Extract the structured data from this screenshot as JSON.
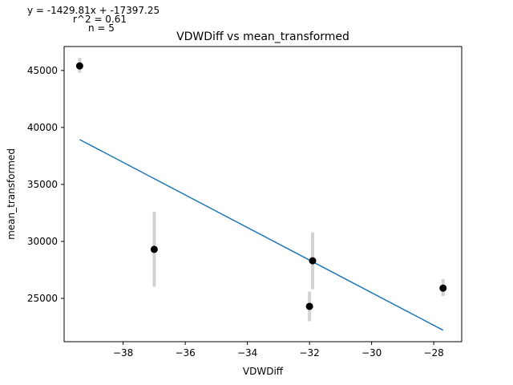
{
  "annotation": {
    "equation": "y = -1429.81x + -17397.25",
    "r2": "r^2 = 0.61",
    "n": "n = 5"
  },
  "chart_data": {
    "type": "scatter",
    "title": "VDWDiff vs mean_transformed",
    "xlabel": "VDWDiff",
    "ylabel": "mean_transformed",
    "xlim": [
      -39.9,
      -27.1
    ],
    "ylim": [
      21200,
      47100
    ],
    "x_ticks": [
      -38,
      -36,
      -34,
      -32,
      -30,
      -28
    ],
    "x_tick_labels": [
      "−38",
      "−36",
      "−34",
      "−32",
      "−30",
      "−28"
    ],
    "y_ticks": [
      25000,
      30000,
      35000,
      40000,
      45000
    ],
    "y_tick_labels": [
      "25000",
      "30000",
      "35000",
      "40000",
      "45000"
    ],
    "grid": false,
    "points": [
      {
        "x": -39.4,
        "y": 45400,
        "err_low": 44800,
        "err_high": 46100
      },
      {
        "x": -37.0,
        "y": 29300,
        "err_low": 26000,
        "err_high": 32600
      },
      {
        "x": -31.9,
        "y": 28300,
        "err_low": 25800,
        "err_high": 30800
      },
      {
        "x": -32.0,
        "y": 24300,
        "err_low": 23000,
        "err_high": 25600
      },
      {
        "x": -27.7,
        "y": 25900,
        "err_low": 25200,
        "err_high": 26700
      }
    ],
    "fit_line": {
      "x": [
        -39.4,
        -27.7
      ],
      "slope": -1429.81,
      "intercept": -17397.25
    },
    "colors": {
      "points": "#000000",
      "error_bars": "#d3d3d3",
      "fit_line": "#1f77b4"
    }
  }
}
